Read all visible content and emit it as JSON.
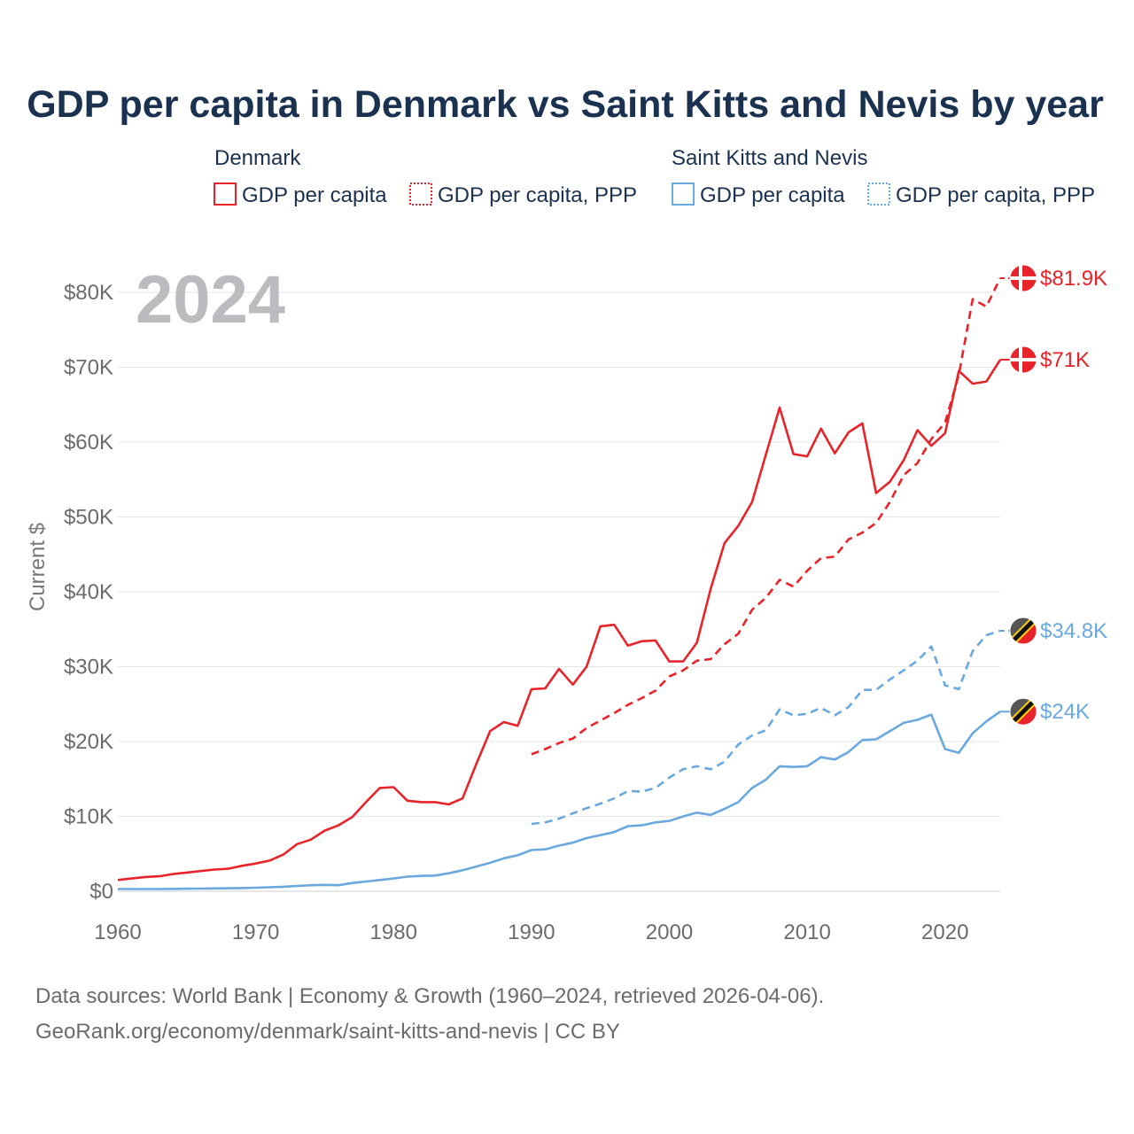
{
  "title": "GDP per capita in Denmark vs Saint Kitts and Nevis by year",
  "legend": {
    "groups": [
      {
        "country": "Denmark",
        "items": [
          "GDP per capita",
          "GDP per capita, PPP"
        ],
        "color": "#e8232a"
      },
      {
        "country": "Saint Kitts and Nevis",
        "items": [
          "GDP per capita",
          "GDP per capita, PPP"
        ],
        "color": "#6aa8e0"
      }
    ]
  },
  "year_display": "2024",
  "source_line1": "Data sources: World Bank | Economy & Growth (1960–2024, retrieved 2026-04-06).",
  "source_line2": "GeoRank.org/economy/denmark/saint-kitts-and-nevis | CC BY",
  "chart_data": {
    "type": "line",
    "title": "GDP per capita in Denmark vs Saint Kitts and Nevis by year",
    "xlabel": "",
    "ylabel": "Current $",
    "xlim": [
      1960,
      2024
    ],
    "ylim": [
      0,
      80000
    ],
    "x_ticks": [
      1960,
      1970,
      1980,
      1990,
      2000,
      2010,
      2020
    ],
    "x_tick_labels": [
      "1960",
      "1970",
      "1980",
      "1990",
      "2000",
      "2010",
      "2020"
    ],
    "y_ticks": [
      0,
      10000,
      20000,
      30000,
      40000,
      50000,
      60000,
      70000,
      80000
    ],
    "y_tick_labels": [
      "$0",
      "$10K",
      "$20K",
      "$30K",
      "$40K",
      "$50K",
      "$60K",
      "$70K",
      "$80K"
    ],
    "grid": true,
    "series": [
      {
        "name": "Denmark GDP per capita",
        "country": "Denmark",
        "style": "solid",
        "color": "#e8232a",
        "end_label": "$71K",
        "x": [
          1960,
          1961,
          1962,
          1963,
          1964,
          1965,
          1966,
          1967,
          1968,
          1969,
          1970,
          1971,
          1972,
          1973,
          1974,
          1975,
          1976,
          1977,
          1978,
          1979,
          1980,
          1981,
          1982,
          1983,
          1984,
          1985,
          1986,
          1987,
          1988,
          1989,
          1990,
          1991,
          1992,
          1993,
          1994,
          1995,
          1996,
          1997,
          1998,
          1999,
          2000,
          2001,
          2002,
          2003,
          2004,
          2005,
          2006,
          2007,
          2008,
          2009,
          2010,
          2011,
          2012,
          2013,
          2014,
          2015,
          2016,
          2017,
          2018,
          2019,
          2020,
          2021,
          2022,
          2023,
          2024
        ],
        "values": [
          1500,
          1700,
          1900,
          2000,
          2300,
          2500,
          2700,
          2900,
          3000,
          3400,
          3700,
          4100,
          4900,
          6300,
          6900,
          8100,
          8800,
          9900,
          11900,
          13800,
          13900,
          12100,
          11900,
          11900,
          11600,
          12400,
          17000,
          21400,
          22600,
          22100,
          27000,
          27100,
          29700,
          27600,
          30000,
          35400,
          35600,
          32800,
          33400,
          33500,
          30700,
          30700,
          33200,
          40400,
          46500,
          48800,
          52000,
          58300,
          64600,
          58400,
          58100,
          61800,
          58500,
          61300,
          62500,
          53200,
          54700,
          57600,
          61600,
          59500,
          61200,
          69500,
          67800,
          68100,
          71000
        ]
      },
      {
        "name": "Denmark GDP per capita, PPP",
        "country": "Denmark",
        "style": "dashed",
        "color": "#e8232a",
        "end_label": "$81.9K",
        "x": [
          1990,
          1991,
          1992,
          1993,
          1994,
          1995,
          1996,
          1997,
          1998,
          1999,
          2000,
          2001,
          2002,
          2003,
          2004,
          2005,
          2006,
          2007,
          2008,
          2009,
          2010,
          2011,
          2012,
          2013,
          2014,
          2015,
          2016,
          2017,
          2018,
          2019,
          2020,
          2021,
          2022,
          2023,
          2024
        ],
        "values": [
          18300,
          19000,
          19800,
          20400,
          21800,
          22800,
          23800,
          24900,
          25800,
          26800,
          28700,
          29500,
          30800,
          31000,
          33000,
          34400,
          37600,
          39200,
          41600,
          40700,
          42800,
          44500,
          44700,
          47000,
          47900,
          49200,
          52000,
          55600,
          57200,
          60400,
          62600,
          69000,
          79100,
          78100,
          81900
        ]
      },
      {
        "name": "Saint Kitts and Nevis GDP per capita",
        "country": "Saint Kitts and Nevis",
        "style": "solid",
        "color": "#6aa8e0",
        "end_label": "$24K",
        "x": [
          1960,
          1961,
          1962,
          1963,
          1964,
          1965,
          1966,
          1967,
          1968,
          1969,
          1970,
          1971,
          1972,
          1973,
          1974,
          1975,
          1976,
          1977,
          1978,
          1979,
          1980,
          1981,
          1982,
          1983,
          1984,
          1985,
          1986,
          1987,
          1988,
          1989,
          1990,
          1991,
          1992,
          1993,
          1994,
          1995,
          1996,
          1997,
          1998,
          1999,
          2000,
          2001,
          2002,
          2003,
          2004,
          2005,
          2006,
          2007,
          2008,
          2009,
          2010,
          2011,
          2012,
          2013,
          2014,
          2015,
          2016,
          2017,
          2018,
          2019,
          2020,
          2021,
          2022,
          2023,
          2024
        ],
        "values": [
          300,
          300,
          300,
          300,
          320,
          340,
          360,
          380,
          400,
          430,
          470,
          530,
          600,
          700,
          800,
          850,
          800,
          1100,
          1300,
          1500,
          1700,
          1950,
          2050,
          2100,
          2400,
          2800,
          3300,
          3800,
          4400,
          4800,
          5500,
          5600,
          6100,
          6500,
          7100,
          7500,
          7900,
          8700,
          8800,
          9200,
          9400,
          10000,
          10500,
          10200,
          11000,
          11900,
          13800,
          14900,
          16700,
          16600,
          16700,
          17900,
          17600,
          18600,
          20200,
          20300,
          21400,
          22500,
          22900,
          23600,
          19000,
          18500,
          21100,
          22700,
          24000
        ]
      },
      {
        "name": "Saint Kitts and Nevis GDP per capita, PPP",
        "country": "Saint Kitts and Nevis",
        "style": "dashed",
        "color": "#6aa8e0",
        "end_label": "$34.8K",
        "x": [
          1990,
          1991,
          1992,
          1993,
          1994,
          1995,
          1996,
          1997,
          1998,
          1999,
          2000,
          2001,
          2002,
          2003,
          2004,
          2005,
          2006,
          2007,
          2008,
          2009,
          2010,
          2011,
          2012,
          2013,
          2014,
          2015,
          2016,
          2017,
          2018,
          2019,
          2020,
          2021,
          2022,
          2023,
          2024
        ],
        "values": [
          9000,
          9200,
          9700,
          10400,
          11100,
          11700,
          12400,
          13400,
          13300,
          13800,
          15200,
          16300,
          16700,
          16300,
          17300,
          19600,
          20800,
          21500,
          24300,
          23500,
          23700,
          24500,
          23500,
          24600,
          26900,
          26900,
          28300,
          29500,
          30800,
          32700,
          27500,
          27000,
          32100,
          34200,
          34800
        ]
      }
    ]
  }
}
